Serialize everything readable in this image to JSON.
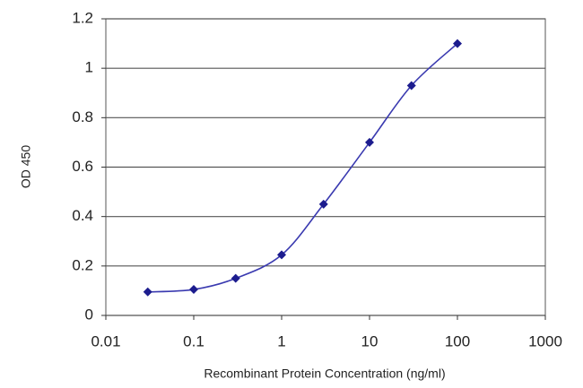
{
  "chart_data": {
    "type": "line",
    "x_label": "Recombinant Protein Concentration (ng/ml)",
    "y_label": "OD 450",
    "x": [
      0.03,
      0.1,
      0.3,
      1,
      3,
      10,
      30,
      100
    ],
    "series": [
      {
        "color": "#1c1c8e",
        "values": [
          0.095,
          0.105,
          0.15,
          0.245,
          0.45,
          0.7,
          0.93,
          1.1
        ]
      }
    ],
    "xscale": "log",
    "xlim": [
      0.01,
      1000
    ],
    "xticks": [
      0.01,
      0.1,
      1,
      10,
      100,
      1000
    ],
    "ylim": [
      0,
      1.2
    ],
    "yticks": [
      0,
      0.2,
      0.4,
      0.6,
      0.8,
      1,
      1.2
    ],
    "grid": true
  }
}
